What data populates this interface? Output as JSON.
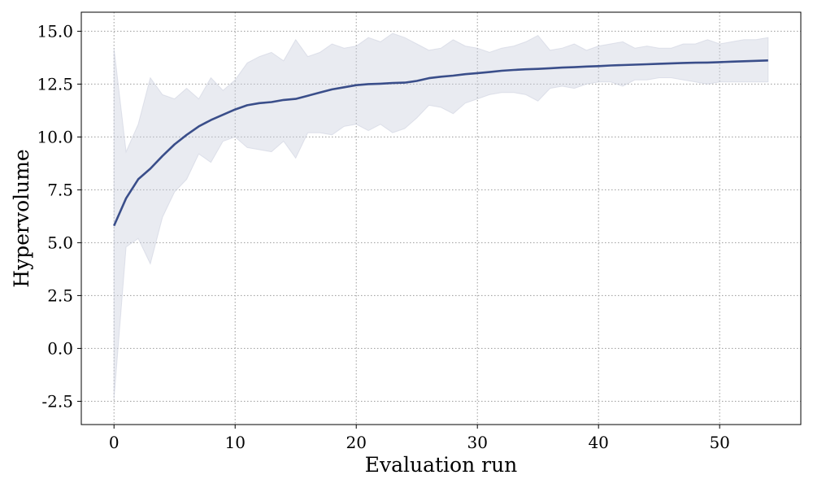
{
  "chart_data": {
    "type": "line",
    "title": "",
    "xlabel": "Evaluation run",
    "ylabel": "Hypervolume",
    "xlim": [
      -2.7,
      56.7
    ],
    "ylim": [
      -3.6,
      15.9
    ],
    "x_ticks": [
      0,
      10,
      20,
      30,
      40,
      50
    ],
    "x_tick_labels": [
      "0",
      "10",
      "20",
      "30",
      "40",
      "50"
    ],
    "y_ticks": [
      -2.5,
      0.0,
      2.5,
      5.0,
      7.5,
      10.0,
      12.5,
      15.0
    ],
    "y_tick_labels": [
      "-2.5",
      "0.0",
      "2.5",
      "5.0",
      "7.5",
      "10.0",
      "12.5",
      "15.0"
    ],
    "grid": true,
    "grid_style": "dotted",
    "legend": "none",
    "series": [
      {
        "color": "#3a4e8a",
        "band_color": "#c8ccdc",
        "x": [
          0,
          1,
          2,
          3,
          4,
          5,
          6,
          7,
          8,
          9,
          10,
          11,
          12,
          13,
          14,
          15,
          16,
          17,
          18,
          19,
          20,
          21,
          22,
          23,
          24,
          25,
          26,
          27,
          28,
          29,
          30,
          31,
          32,
          33,
          34,
          35,
          36,
          37,
          38,
          39,
          40,
          41,
          42,
          43,
          44,
          45,
          46,
          47,
          48,
          49,
          50,
          51,
          52,
          53,
          54
        ],
        "mean": [
          5.8,
          7.1,
          8.0,
          8.5,
          9.1,
          9.65,
          10.1,
          10.5,
          10.8,
          11.05,
          11.3,
          11.5,
          11.6,
          11.65,
          11.75,
          11.8,
          11.95,
          12.1,
          12.25,
          12.35,
          12.45,
          12.5,
          12.52,
          12.55,
          12.57,
          12.65,
          12.78,
          12.85,
          12.9,
          12.97,
          13.02,
          13.07,
          13.13,
          13.17,
          13.2,
          13.22,
          13.25,
          13.28,
          13.3,
          13.33,
          13.35,
          13.38,
          13.4,
          13.42,
          13.44,
          13.46,
          13.48,
          13.5,
          13.51,
          13.52,
          13.54,
          13.56,
          13.58,
          13.6,
          13.62
        ],
        "upper": [
          14.2,
          9.3,
          10.6,
          12.8,
          12.0,
          11.8,
          12.3,
          11.8,
          12.8,
          12.2,
          12.7,
          13.5,
          13.8,
          14.0,
          13.6,
          14.6,
          13.8,
          14.0,
          14.4,
          14.2,
          14.3,
          14.7,
          14.5,
          14.9,
          14.7,
          14.4,
          14.1,
          14.2,
          14.6,
          14.3,
          14.2,
          14.0,
          14.2,
          14.3,
          14.5,
          14.8,
          14.1,
          14.2,
          14.4,
          14.1,
          14.3,
          14.4,
          14.5,
          14.2,
          14.3,
          14.2,
          14.2,
          14.4,
          14.4,
          14.6,
          14.4,
          14.5,
          14.6,
          14.6,
          14.7
        ],
        "lower": [
          -2.4,
          4.8,
          5.2,
          4.0,
          6.2,
          7.4,
          8.0,
          9.2,
          8.8,
          9.8,
          10.0,
          9.5,
          9.4,
          9.3,
          9.8,
          9.0,
          10.2,
          10.2,
          10.1,
          10.5,
          10.6,
          10.3,
          10.6,
          10.2,
          10.4,
          10.9,
          11.5,
          11.4,
          11.1,
          11.6,
          11.8,
          12.0,
          12.1,
          12.1,
          12.0,
          11.7,
          12.3,
          12.4,
          12.3,
          12.5,
          12.6,
          12.6,
          12.4,
          12.7,
          12.7,
          12.8,
          12.8,
          12.7,
          12.6,
          12.5,
          12.6,
          12.6,
          12.6,
          12.6,
          12.6
        ]
      }
    ]
  }
}
